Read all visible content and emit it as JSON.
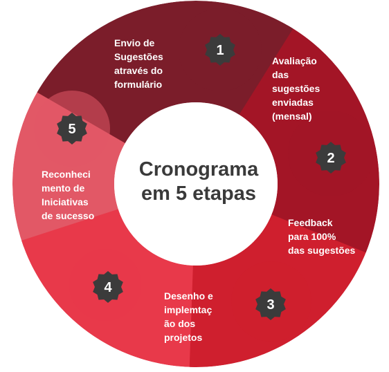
{
  "center": {
    "line1": "Cronograma",
    "line2": "em 5 etapas"
  },
  "stages": [
    {
      "number": "1",
      "label_lines": [
        "Envio de",
        "Sugestões",
        "através do",
        "formulário"
      ],
      "color": "#7B1D2A"
    },
    {
      "number": "2",
      "label_lines": [
        "Avaliação",
        "das",
        "sugestões",
        "enviadas",
        "(mensal)"
      ],
      "color": "#A31526"
    },
    {
      "number": "3",
      "label_lines": [
        "Feedback",
        "para 100%",
        "das sugestões"
      ],
      "color": "#CF1F2E"
    },
    {
      "number": "4",
      "label_lines": [
        "Desenho e",
        "implemtaç",
        "ão dos",
        "projetos"
      ],
      "color": "#E8394A"
    },
    {
      "number": "5",
      "label_lines": [
        "Reconheci",
        "mento de",
        "Iniciativas",
        "de sucesso"
      ],
      "color": "#E25866"
    }
  ],
  "colors": {
    "badge": "#3b3b3b",
    "center_fill": "#ffffff",
    "center_text": "#3a3a3a"
  }
}
